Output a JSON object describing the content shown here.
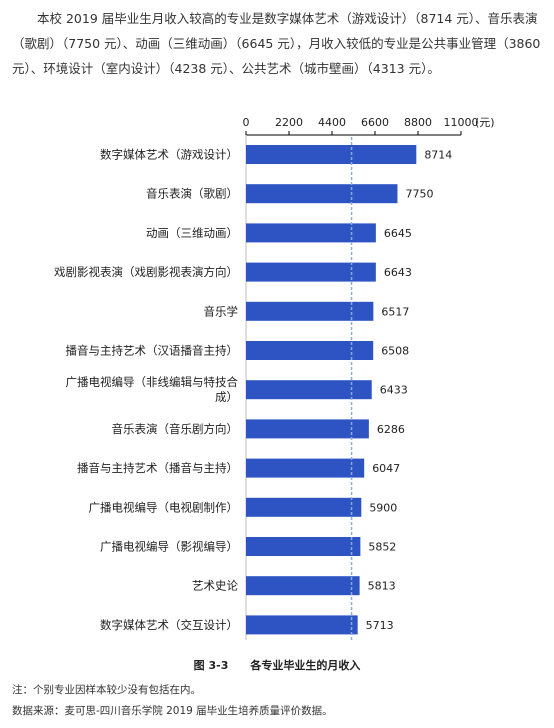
{
  "intro_text": "本校 2019 届毕业生月收入较高的专业是数字媒体艺术（游戏设计）（8714 元）、音乐表演（歌剧）（7750 元）、动画（三维动画）（6645 元），月收入较低的专业是公共事业管理（3860 元）、环境设计（室内设计）（4238 元）、公共艺术（城市壁画）（4313 元）。",
  "caption": {
    "number": "图 3-3",
    "title": "各专业毕业生的月收入"
  },
  "notes": {
    "note1": "注：个别专业因样本较少没有包括在内。",
    "note2": "数据来源：麦可思-四川音乐学院 2019 届毕业生培养质量评价数据。"
  },
  "colors": {
    "bar": "#2e54c4",
    "reference_line": "#8ab0d8",
    "axis": "#000000"
  },
  "chart_data": {
    "type": "bar",
    "orientation": "horizontal",
    "axis_position": "top",
    "xlim": [
      0,
      11000
    ],
    "ticks": [
      0,
      2200,
      4400,
      6600,
      8800,
      11000
    ],
    "tick_labels": [
      "0",
      "2200",
      "4400",
      "6600",
      "8800",
      "11000"
    ],
    "unit_label": "(元)",
    "reference_line": {
      "value": 5400,
      "style": "dashed"
    },
    "grid": false,
    "categories": [
      [
        "数字媒体艺术（游戏设计）"
      ],
      [
        "音乐表演（歌剧）"
      ],
      [
        "动画（三维动画）"
      ],
      [
        "戏剧影视表演（戏剧影视表演方向）"
      ],
      [
        "音乐学"
      ],
      [
        "播音与主持艺术（汉语播音主持）"
      ],
      [
        "广播电视编导（非线编辑与特技合",
        "成）"
      ],
      [
        "音乐表演（音乐剧方向）"
      ],
      [
        "播音与主持艺术（播音与主持）"
      ],
      [
        "广播电视编导（电视剧制作）"
      ],
      [
        "广播电视编导（影视编导）"
      ],
      [
        "艺术史论"
      ],
      [
        "数字媒体艺术（交互设计）"
      ]
    ],
    "values": [
      8714,
      7750,
      6645,
      6643,
      6517,
      6508,
      6433,
      6286,
      6047,
      5900,
      5852,
      5813,
      5713
    ]
  }
}
